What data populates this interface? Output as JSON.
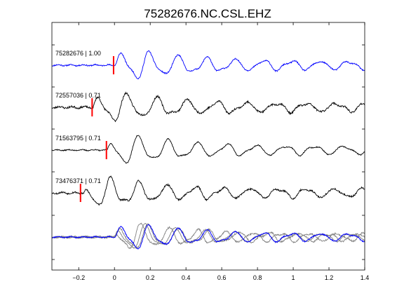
{
  "chart_data": {
    "type": "line",
    "title": "75282676.NC.CSL.EHZ",
    "xlabel": "",
    "ylabel": "",
    "xlim": [
      -0.35,
      1.4
    ],
    "x_ticks": [
      -0.2,
      0,
      0.2,
      0.4,
      0.6,
      0.8,
      1.0,
      1.2,
      1.4
    ],
    "x_tick_labels": [
      "−0.2",
      "0",
      "0.2",
      "0.4",
      "0.6",
      "0.8",
      "1",
      "1.2",
      "1.4"
    ],
    "grid": false,
    "colors": {
      "reference": "#0000ff",
      "trace": "#000000",
      "stack": "#808080",
      "pick": "#ff0000"
    },
    "series": [
      {
        "label": "75282676 | 1.00",
        "correlation": 1.0,
        "color": "#0000ff",
        "pick_time": -0.005,
        "onset": 0.0,
        "noise": 0.06,
        "freq": 6.3,
        "phase": 0.0,
        "amp": 1.0,
        "seed": 11
      },
      {
        "label": "72557036 | 0.71",
        "correlation": 0.71,
        "color": "#000000",
        "pick_time": -0.125,
        "onset": -0.12,
        "noise": 0.09,
        "freq": 6.0,
        "phase": 0.6,
        "amp": 1.0,
        "seed": 23
      },
      {
        "label": "71563795 | 0.71",
        "correlation": 0.71,
        "color": "#000000",
        "pick_time": -0.045,
        "onset": -0.04,
        "noise": 0.05,
        "freq": 6.1,
        "phase": 1.1,
        "amp": 1.0,
        "seed": 37
      },
      {
        "label": "73476371 | 0.71",
        "correlation": 0.71,
        "color": "#000000",
        "pick_time": -0.19,
        "onset": -0.17,
        "noise": 0.08,
        "freq": 6.4,
        "phase": 1.8,
        "amp": 1.0,
        "seed": 53
      }
    ]
  }
}
